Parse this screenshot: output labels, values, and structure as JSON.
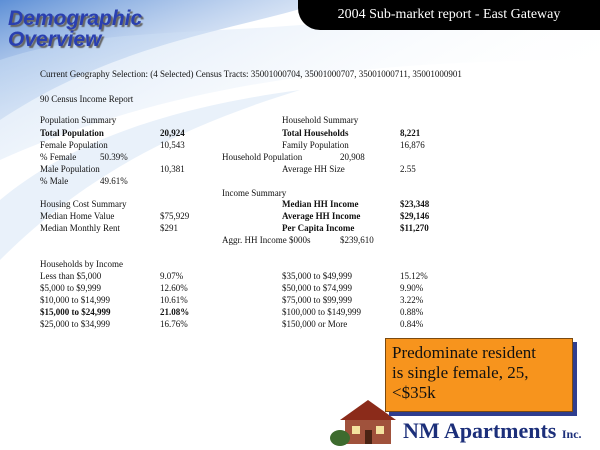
{
  "header": {
    "title": [
      "Demographic",
      "Overview"
    ],
    "banner": "2004 Sub-market report - East Gateway"
  },
  "selection": "Current Geography Selection: (4 Selected) Census Tracts: 35001000704, 35001000707, 35001000711, 35001000901",
  "report_title": "90 Census Income Report",
  "population": {
    "heading": "Population Summary",
    "rows": [
      [
        "Total Population",
        "20,924"
      ],
      [
        "Female Population",
        "10,543"
      ],
      [
        "% Female",
        "50.39%"
      ],
      [
        "Male Population",
        "10,381"
      ],
      [
        "% Male",
        "49.61%"
      ]
    ]
  },
  "household": {
    "heading": "Household Summary",
    "rows": [
      [
        "Total Households",
        "8,221"
      ],
      [
        "Family Population",
        "16,876"
      ],
      [
        "Household Population",
        "20,908"
      ],
      [
        "Average HH Size",
        "2.55"
      ]
    ]
  },
  "income": {
    "heading": "Income Summary",
    "rows": [
      [
        "Median HH Income",
        "$23,348"
      ],
      [
        "Average HH Income",
        "$29,146"
      ],
      [
        "Per Capita Income",
        "$11,270"
      ],
      [
        "Aggr. HH Income $000s",
        "$239,610"
      ]
    ]
  },
  "housing": {
    "heading": "Housing Cost Summary",
    "rows": [
      [
        "Median Home Value",
        "$75,929"
      ],
      [
        "Median Monthly Rent",
        "$291"
      ]
    ]
  },
  "households_by_income": {
    "heading": "Households by Income",
    "rows": [
      [
        "Less than $5,000",
        "9.07%",
        "$35,000 to $49,999",
        "15.12%"
      ],
      [
        "$5,000 to $9,999",
        "12.60%",
        "$50,000 to $74,999",
        "9.90%"
      ],
      [
        "$10,000 to $14,999",
        "10.61%",
        "$75,000 to $99,999",
        "3.22%"
      ],
      [
        "$15,000 to $24,999",
        "21.08%",
        "$100,000 to $149,999",
        "0.88%"
      ],
      [
        "$25,000 to $34,999",
        "16.76%",
        "$150,000 or More",
        "0.84%"
      ]
    ]
  },
  "callout": [
    "Predominate resident",
    "is single female, 25,",
    "<$35k"
  ],
  "logo": {
    "name": "NM Apartments",
    "suffix": "Inc."
  }
}
